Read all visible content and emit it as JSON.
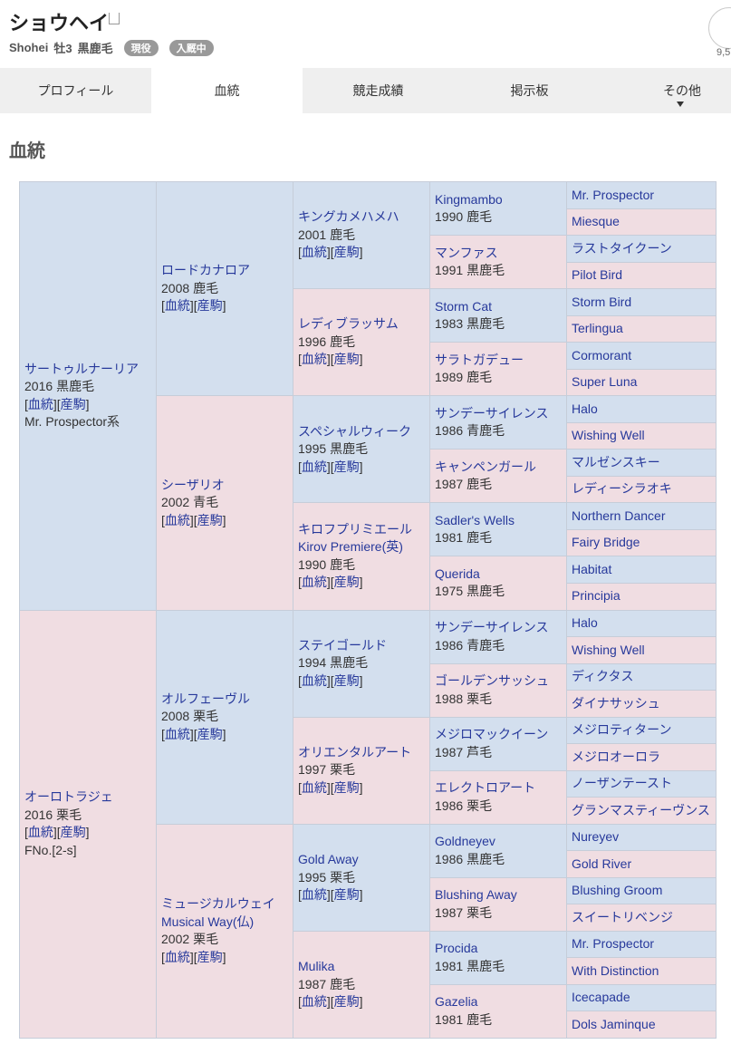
{
  "header": {
    "title": "ショウヘイ",
    "name_en": "Shohei",
    "sex_age": "牡3",
    "coat": "黒鹿毛",
    "badges": [
      "現役",
      "入厩中"
    ],
    "favorite_count": "9,5"
  },
  "tabs": [
    "プロフィール",
    "血統",
    "競走成績",
    "掲示板",
    "その他"
  ],
  "active_tab": 1,
  "section_title": "血統",
  "link_open": "[",
  "link_sep": "][",
  "link_close": "]",
  "link_pedigree": "血統",
  "link_offspring": "産駒",
  "pedigree": {
    "gen1": [
      {
        "name": "サートゥルナーリア",
        "year": 2016,
        "coat": "黒鹿毛",
        "note": "Mr. Prospector系"
      },
      {
        "name": "オーロトラジェ",
        "year": 2016,
        "coat": "栗毛",
        "note": "FNo.[2-s]"
      }
    ],
    "gen2": [
      {
        "name": "ロードカナロア",
        "year": 2008,
        "coat": "鹿毛"
      },
      {
        "name": "シーザリオ",
        "year": 2002,
        "coat": "青毛"
      },
      {
        "name": "オルフェーヴル",
        "year": 2008,
        "coat": "栗毛"
      },
      {
        "name": "ミュージカルウェイ",
        "name_alt": "Musical Way(仏)",
        "year": 2002,
        "coat": "栗毛"
      }
    ],
    "gen3": [
      {
        "name": "キングカメハメハ",
        "year": 2001,
        "coat": "鹿毛"
      },
      {
        "name": "レディブラッサム",
        "year": 1996,
        "coat": "鹿毛"
      },
      {
        "name": "スペシャルウィーク",
        "year": 1995,
        "coat": "黒鹿毛"
      },
      {
        "name": "キロフプリミエール",
        "name_alt": "Kirov Premiere(英)",
        "year": 1990,
        "coat": "鹿毛"
      },
      {
        "name": "ステイゴールド",
        "year": 1994,
        "coat": "黒鹿毛"
      },
      {
        "name": "オリエンタルアート",
        "year": 1997,
        "coat": "栗毛"
      },
      {
        "name": "Gold Away",
        "year": 1995,
        "coat": "栗毛"
      },
      {
        "name": "Mulika",
        "year": 1987,
        "coat": "鹿毛"
      }
    ],
    "gen4": [
      {
        "name": "Kingmambo",
        "year": 1990,
        "coat": "鹿毛"
      },
      {
        "name": "マンファス",
        "year": 1991,
        "coat": "黒鹿毛"
      },
      {
        "name": "Storm Cat",
        "year": 1983,
        "coat": "黒鹿毛"
      },
      {
        "name": "サラトガデュー",
        "year": 1989,
        "coat": "鹿毛"
      },
      {
        "name": "サンデーサイレンス",
        "year": 1986,
        "coat": "青鹿毛"
      },
      {
        "name": "キャンペンガール",
        "year": 1987,
        "coat": "鹿毛"
      },
      {
        "name": "Sadler's Wells",
        "year": 1981,
        "coat": "鹿毛"
      },
      {
        "name": "Querida",
        "year": 1975,
        "coat": "黒鹿毛"
      },
      {
        "name": "サンデーサイレンス",
        "year": 1986,
        "coat": "青鹿毛"
      },
      {
        "name": "ゴールデンサッシュ",
        "year": 1988,
        "coat": "栗毛"
      },
      {
        "name": "メジロマックイーン",
        "year": 1987,
        "coat": "芦毛"
      },
      {
        "name": "エレクトロアート",
        "year": 1986,
        "coat": "栗毛"
      },
      {
        "name": "Goldneyev",
        "year": 1986,
        "coat": "黒鹿毛"
      },
      {
        "name": "Blushing Away",
        "year": 1987,
        "coat": "栗毛"
      },
      {
        "name": "Procida",
        "year": 1981,
        "coat": "黒鹿毛"
      },
      {
        "name": "Gazelia",
        "year": 1981,
        "coat": "鹿毛"
      }
    ],
    "gen5": [
      {
        "name": "Mr. Prospector"
      },
      {
        "name": "Miesque"
      },
      {
        "name": "ラストタイクーン"
      },
      {
        "name": "Pilot Bird"
      },
      {
        "name": "Storm Bird"
      },
      {
        "name": "Terlingua"
      },
      {
        "name": "Cormorant"
      },
      {
        "name": "Super Luna"
      },
      {
        "name": "Halo"
      },
      {
        "name": "Wishing Well"
      },
      {
        "name": "マルゼンスキー"
      },
      {
        "name": "レディーシラオキ"
      },
      {
        "name": "Northern Dancer"
      },
      {
        "name": "Fairy Bridge"
      },
      {
        "name": "Habitat"
      },
      {
        "name": "Principia"
      },
      {
        "name": "Halo"
      },
      {
        "name": "Wishing Well"
      },
      {
        "name": "ディクタス"
      },
      {
        "name": "ダイナサッシュ"
      },
      {
        "name": "メジロティターン"
      },
      {
        "name": "メジロオーロラ"
      },
      {
        "name": "ノーザンテースト"
      },
      {
        "name": "グランマスティーヴンス"
      },
      {
        "name": "Nureyev"
      },
      {
        "name": "Gold River"
      },
      {
        "name": "Blushing Groom"
      },
      {
        "name": "スイートリベンジ"
      },
      {
        "name": "Mr. Prospector"
      },
      {
        "name": "With Distinction"
      },
      {
        "name": "Icecapade"
      },
      {
        "name": "Dols Jaminque"
      }
    ]
  }
}
